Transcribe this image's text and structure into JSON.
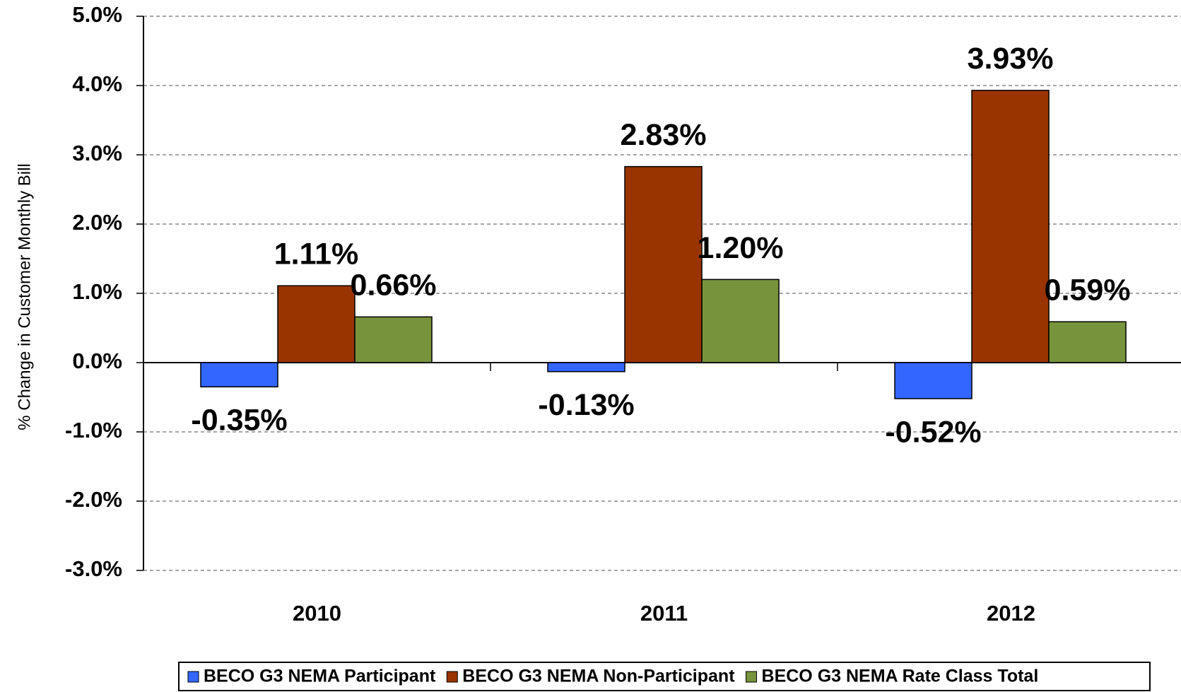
{
  "chart_data": {
    "type": "bar",
    "y_label": "% Change in Customer Monthly Bill",
    "categories": [
      "2010",
      "2011",
      "2012"
    ],
    "series": [
      {
        "name": "BECO G3 NEMA Participant",
        "color": "#3366ff",
        "values": [
          -0.35,
          -0.13,
          -0.52
        ],
        "value_labels": [
          "-0.35%",
          "-0.13%",
          "-0.52%"
        ]
      },
      {
        "name": "BECO G3 NEMA Non-Participant",
        "color": "#993300",
        "values": [
          1.11,
          2.83,
          3.93
        ],
        "value_labels": [
          "1.11%",
          "2.83%",
          "3.93%"
        ]
      },
      {
        "name": "BECO G3 NEMA Rate Class Total",
        "color": "#77933c",
        "values": [
          0.66,
          1.2,
          0.59
        ],
        "value_labels": [
          "0.66%",
          "1.20%",
          "0.59%"
        ]
      }
    ],
    "ylim": [
      -3,
      5
    ],
    "yticks": [
      {
        "value": -3,
        "label": "-3.0%"
      },
      {
        "value": -2,
        "label": "-2.0%"
      },
      {
        "value": -1,
        "label": "-1.0%"
      },
      {
        "value": 0,
        "label": "0.0%"
      },
      {
        "value": 1,
        "label": "1.0%"
      },
      {
        "value": 2,
        "label": "2.0%"
      },
      {
        "value": 3,
        "label": "3.0%"
      },
      {
        "value": 4,
        "label": "4.0%"
      },
      {
        "value": 5,
        "label": "5.0%"
      }
    ],
    "grid": true,
    "legend": "bottom"
  }
}
